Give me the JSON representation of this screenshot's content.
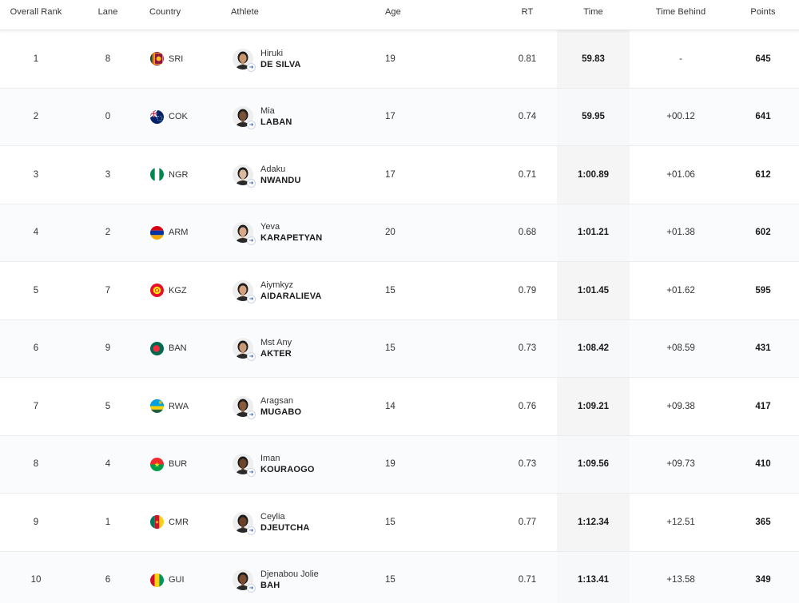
{
  "table": {
    "headers": {
      "rank": "Overall Rank",
      "lane": "Lane",
      "country": "Country",
      "athlete": "Athlete",
      "age": "Age",
      "rt": "RT",
      "time": "Time",
      "behind": "Time Behind",
      "points": "Points"
    },
    "rows": [
      {
        "rank": "1",
        "lane": "8",
        "country": "SRI",
        "flag_icon": "flag-sri-icon",
        "first": "Hiruki",
        "last": "DE SILVA",
        "age": "19",
        "rt": "0.81",
        "time": "59.83",
        "behind": "-",
        "points": "645",
        "skin": "#c8956c"
      },
      {
        "rank": "2",
        "lane": "0",
        "country": "COK",
        "flag_icon": "flag-cok-icon",
        "first": "Mia",
        "last": "LABAN",
        "age": "17",
        "rt": "0.74",
        "time": "59.95",
        "behind": "+00.12",
        "points": "641",
        "skin": "#7a5238"
      },
      {
        "rank": "3",
        "lane": "3",
        "country": "NGR",
        "flag_icon": "flag-ngr-icon",
        "first": "Adaku",
        "last": "NWANDU",
        "age": "17",
        "rt": "0.71",
        "time": "1:00.89",
        "behind": "+01.06",
        "points": "612",
        "skin": "#d9b99b"
      },
      {
        "rank": "4",
        "lane": "2",
        "country": "ARM",
        "flag_icon": "flag-arm-icon",
        "first": "Yeva",
        "last": "KARAPETYAN",
        "age": "20",
        "rt": "0.68",
        "time": "1:01.21",
        "behind": "+01.38",
        "points": "602",
        "skin": "#d7a98a"
      },
      {
        "rank": "5",
        "lane": "7",
        "country": "KGZ",
        "flag_icon": "flag-kgz-icon",
        "first": "Aiymkyz",
        "last": "AIDARALIEVA",
        "age": "15",
        "rt": "0.79",
        "time": "1:01.45",
        "behind": "+01.62",
        "points": "595",
        "skin": "#d6a27e"
      },
      {
        "rank": "6",
        "lane": "9",
        "country": "BAN",
        "flag_icon": "flag-ban-icon",
        "first": "Mst Any",
        "last": "AKTER",
        "age": "15",
        "rt": "0.73",
        "time": "1:08.42",
        "behind": "+08.59",
        "points": "431",
        "skin": "#c99877"
      },
      {
        "rank": "7",
        "lane": "5",
        "country": "RWA",
        "flag_icon": "flag-rwa-icon",
        "first": "Aragsan",
        "last": "MUGABO",
        "age": "14",
        "rt": "0.76",
        "time": "1:09.21",
        "behind": "+09.38",
        "points": "417",
        "skin": "#8a5a3c"
      },
      {
        "rank": "8",
        "lane": "4",
        "country": "BUR",
        "flag_icon": "flag-bur-icon",
        "first": "Iman",
        "last": "KOURAOGO",
        "age": "19",
        "rt": "0.73",
        "time": "1:09.56",
        "behind": "+09.73",
        "points": "410",
        "skin": "#6e452c"
      },
      {
        "rank": "9",
        "lane": "1",
        "country": "CMR",
        "flag_icon": "flag-cmr-icon",
        "first": "Ceylia",
        "last": "DJEUTCHA",
        "age": "15",
        "rt": "0.77",
        "time": "1:12.34",
        "behind": "+12.51",
        "points": "365",
        "skin": "#6a4128"
      },
      {
        "rank": "10",
        "lane": "6",
        "country": "GUI",
        "flag_icon": "flag-gui-icon",
        "first": "Djenabou Jolie",
        "last": "BAH",
        "age": "15",
        "rt": "0.71",
        "time": "1:13.41",
        "behind": "+13.58",
        "points": "349",
        "skin": "#7b4d31"
      }
    ]
  },
  "colors": {
    "time_column_bg": "#f5f5f5",
    "border": "#ececec",
    "link_badge": "#3a66c4"
  }
}
